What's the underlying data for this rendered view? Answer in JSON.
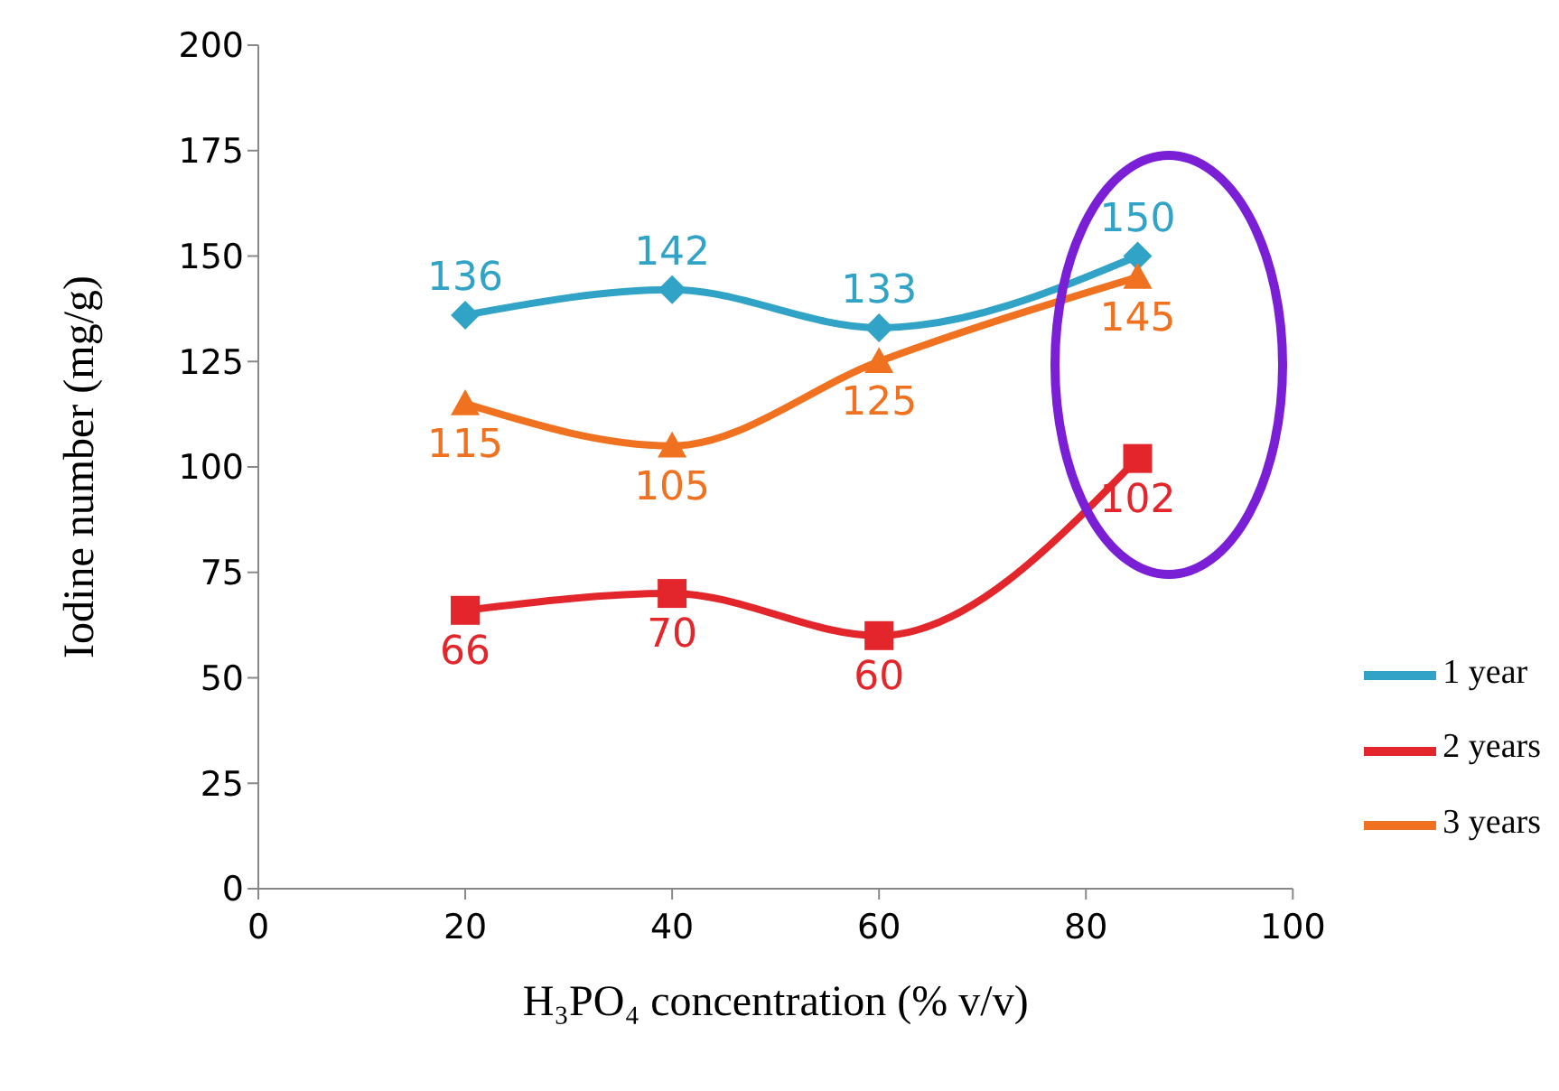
{
  "chart_data": {
    "type": "line",
    "xlabel": "H₃PO₄ concentration (% v/v)",
    "ylabel": "Iodine number (mg/g)",
    "x": [
      20,
      40,
      60,
      85
    ],
    "series": [
      {
        "name": "1 year",
        "color": "#31a3c6",
        "values": [
          136,
          142,
          133,
          150
        ],
        "marker": "diamond"
      },
      {
        "name": "2 years",
        "color": "#e2262b",
        "values": [
          66,
          70,
          60,
          102
        ],
        "marker": "square"
      },
      {
        "name": "3 years",
        "color": "#f0711f",
        "values": [
          115,
          105,
          125,
          145
        ],
        "marker": "triangle"
      }
    ],
    "xlim": [
      0,
      100
    ],
    "xticks": [
      0,
      20,
      40,
      60,
      80,
      100
    ],
    "ylim": [
      0,
      200
    ],
    "yticks": [
      0,
      25,
      50,
      75,
      100,
      125,
      150,
      175,
      200
    ],
    "data_labels": true,
    "legend": "right",
    "grid": false
  }
}
